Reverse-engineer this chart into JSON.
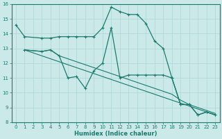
{
  "xlabel": "Humidex (Indice chaleur)",
  "xlim": [
    -0.5,
    23.5
  ],
  "ylim": [
    8,
    16
  ],
  "yticks": [
    8,
    9,
    10,
    11,
    12,
    13,
    14,
    15,
    16
  ],
  "xticks": [
    0,
    1,
    2,
    3,
    4,
    5,
    6,
    7,
    8,
    9,
    10,
    11,
    12,
    13,
    14,
    15,
    16,
    17,
    18,
    19,
    20,
    21,
    22,
    23
  ],
  "bg_color": "#cce9e9",
  "line_color": "#1a7a6e",
  "grid_color": "#b0d8d8",
  "s1x": [
    0,
    1,
    3,
    4,
    5,
    6,
    7,
    8,
    9,
    10,
    11,
    12,
    13,
    14,
    15,
    16,
    17,
    18,
    19,
    20,
    21,
    22,
    23
  ],
  "s1y": [
    14.6,
    13.8,
    13.7,
    13.7,
    13.8,
    13.8,
    13.8,
    13.8,
    13.8,
    14.4,
    15.8,
    15.5,
    15.3,
    15.3,
    14.7,
    13.5,
    13.0,
    11.0,
    9.2,
    9.2,
    8.5,
    8.7,
    8.5
  ],
  "s2x": [
    1,
    3,
    4,
    5,
    6,
    7,
    8,
    9,
    10,
    11,
    12,
    13,
    14,
    15,
    16,
    17,
    18,
    19,
    20,
    21,
    22,
    23
  ],
  "s2y": [
    12.9,
    12.8,
    12.9,
    12.5,
    11.0,
    11.1,
    10.3,
    11.5,
    12.0,
    14.4,
    11.0,
    11.2,
    11.2,
    11.2,
    11.2,
    11.2,
    11.0,
    9.2,
    9.2,
    8.5,
    8.7,
    8.5
  ],
  "s3x": [
    1,
    3,
    4,
    5,
    6,
    7,
    8,
    9,
    10,
    11,
    12,
    13,
    14,
    15,
    16,
    17,
    18,
    19,
    20,
    21,
    22,
    23
  ],
  "s3y": [
    12.9,
    12.8,
    12.9,
    12.5,
    12.3,
    12.1,
    11.9,
    11.7,
    11.5,
    11.3,
    11.1,
    10.9,
    10.7,
    10.5,
    10.3,
    10.1,
    9.9,
    9.5,
    9.2,
    9.0,
    8.8,
    8.6
  ],
  "s4x": [
    1,
    23
  ],
  "s4y": [
    12.9,
    8.5
  ]
}
